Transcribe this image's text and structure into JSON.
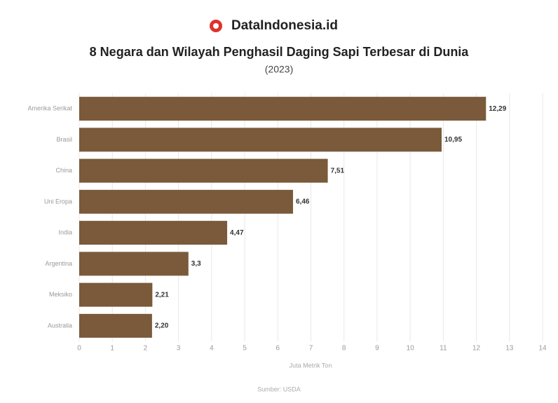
{
  "brand": "DataIndonesia.id",
  "chart_data": {
    "type": "hbar",
    "title": "8 Negara dan Wilayah Penghasil Daging Sapi Terbesar di Dunia",
    "subtitle": "(2023)",
    "categories": [
      "Amerika Serikat",
      "Brasil",
      "China",
      "Uni Eropa",
      "India",
      "Argentina",
      "Meksiko",
      "Australia"
    ],
    "values": [
      12.29,
      10.95,
      7.51,
      6.46,
      4.47,
      3.3,
      2.21,
      2.2
    ],
    "value_labels": [
      "12,29",
      "10,95",
      "7,51",
      "6,46",
      "4,47",
      "3,3",
      "2,21",
      "2,20"
    ],
    "color": "#7a5a3a",
    "xlim": [
      0,
      14
    ],
    "xticks": [
      0,
      1,
      2,
      3,
      4,
      5,
      6,
      7,
      8,
      9,
      10,
      11,
      12,
      13,
      14
    ],
    "grid": true,
    "xlabel": "Juta Metrik Ton",
    "source": "Sumber: USDA"
  }
}
